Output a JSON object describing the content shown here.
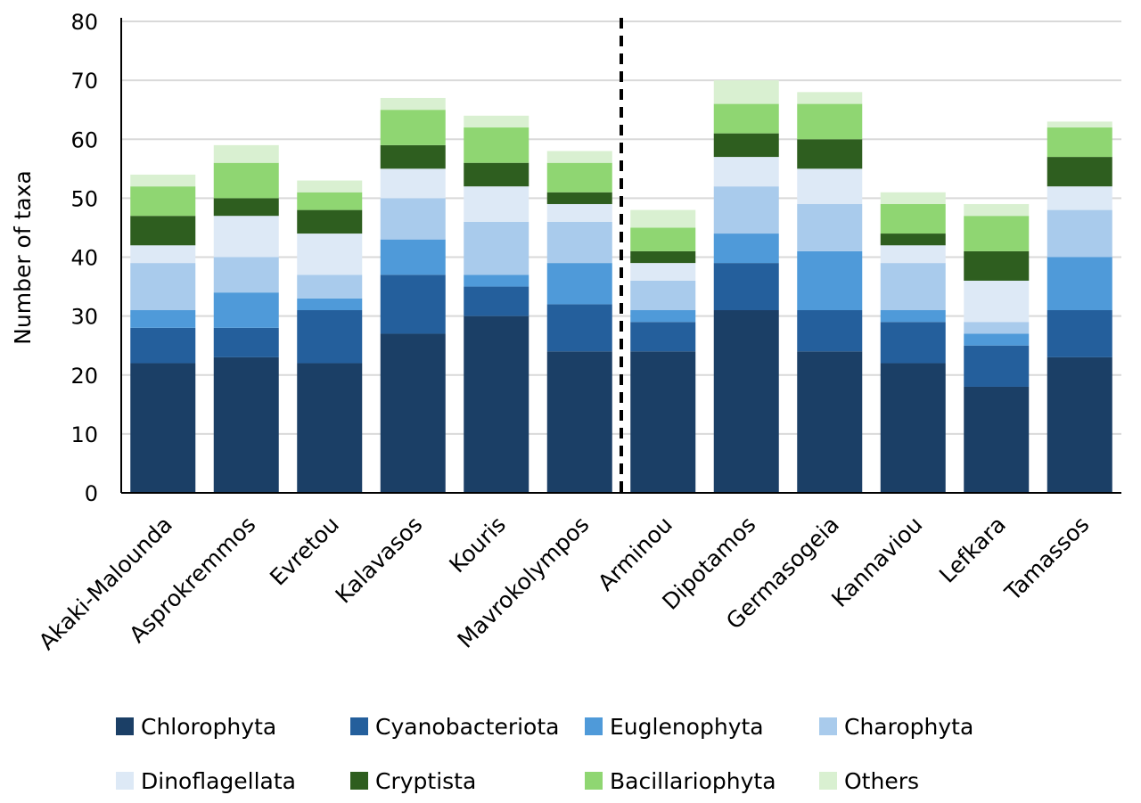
{
  "chart_data": {
    "type": "bar",
    "stacked": true,
    "title": "",
    "xlabel": "",
    "ylabel": "Number of taxa",
    "ylim": [
      0,
      80
    ],
    "yticks": [
      0,
      10,
      20,
      30,
      40,
      50,
      60,
      70,
      80
    ],
    "grid": true,
    "legend_position": "bottom",
    "divider_after_category": "Mavrokolympos",
    "categories": [
      "Akaki-Malounda",
      "Asprokremmos",
      "Evretou",
      "Kalavasos",
      "Kouris",
      "Mavrokolympos",
      "Arminou",
      "Dipotamos",
      "Germasogeia",
      "Kannaviou",
      "Lefkara",
      "Tamassos"
    ],
    "series": [
      {
        "name": "Chlorophyta",
        "color": "#1b3f66",
        "values": [
          22,
          23,
          22,
          27,
          30,
          24,
          24,
          31,
          24,
          22,
          18,
          23
        ]
      },
      {
        "name": "Cyanobacteriota",
        "color": "#245f9c",
        "values": [
          6,
          5,
          9,
          10,
          5,
          8,
          5,
          8,
          7,
          7,
          7,
          8
        ]
      },
      {
        "name": "Euglenophyta",
        "color": "#4f9ad9",
        "values": [
          3,
          6,
          2,
          6,
          2,
          7,
          2,
          5,
          10,
          2,
          2,
          9
        ]
      },
      {
        "name": "Charophyta",
        "color": "#a9cbec",
        "values": [
          8,
          6,
          4,
          7,
          9,
          7,
          5,
          8,
          8,
          8,
          2,
          8
        ]
      },
      {
        "name": "Dinoflagellata",
        "color": "#dde9f6",
        "values": [
          3,
          7,
          7,
          5,
          6,
          3,
          3,
          5,
          6,
          3,
          7,
          4
        ]
      },
      {
        "name": "Cryptista",
        "color": "#2e5e1f",
        "values": [
          5,
          3,
          4,
          4,
          4,
          2,
          2,
          4,
          5,
          2,
          5,
          5
        ]
      },
      {
        "name": "Bacillariophyta",
        "color": "#8fd672",
        "values": [
          5,
          6,
          3,
          6,
          6,
          5,
          4,
          5,
          6,
          5,
          6,
          5
        ]
      },
      {
        "name": "Others",
        "color": "#d9f0d1",
        "values": [
          2,
          3,
          2,
          2,
          2,
          2,
          3,
          4,
          2,
          2,
          2,
          1
        ]
      }
    ]
  }
}
